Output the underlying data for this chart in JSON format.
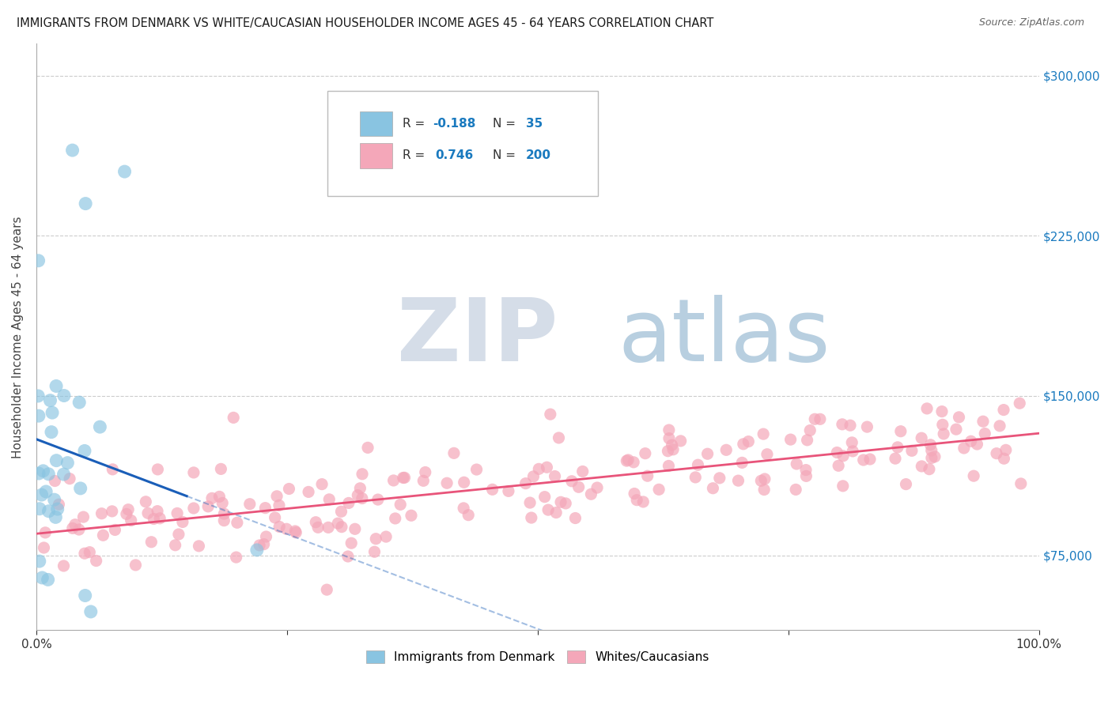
{
  "title": "IMMIGRANTS FROM DENMARK VS WHITE/CAUCASIAN HOUSEHOLDER INCOME AGES 45 - 64 YEARS CORRELATION CHART",
  "source": "Source: ZipAtlas.com",
  "ylabel": "Householder Income Ages 45 - 64 years",
  "xlim": [
    0,
    100
  ],
  "ylim": [
    40000,
    315000
  ],
  "yticks": [
    75000,
    150000,
    225000,
    300000
  ],
  "ytick_labels": [
    "$75,000",
    "$150,000",
    "$225,000",
    "$300,000"
  ],
  "color_blue": "#89c4e1",
  "color_pink": "#f4a7b9",
  "color_blue_line": "#1a5eb8",
  "color_pink_line": "#e8547a",
  "watermark_zip": "ZIP",
  "watermark_atlas": "atlas",
  "watermark_color_zip": "#d0d8e8",
  "watermark_color_atlas": "#b0c4de",
  "background_color": "#ffffff",
  "N_blue": 35,
  "N_pink": 200,
  "R_blue": -0.188,
  "R_pink": 0.746,
  "blue_intercept": 130000,
  "blue_slope": -2500,
  "pink_intercept": 84000,
  "pink_slope": 480,
  "seed_blue": 77,
  "seed_pink": 42
}
